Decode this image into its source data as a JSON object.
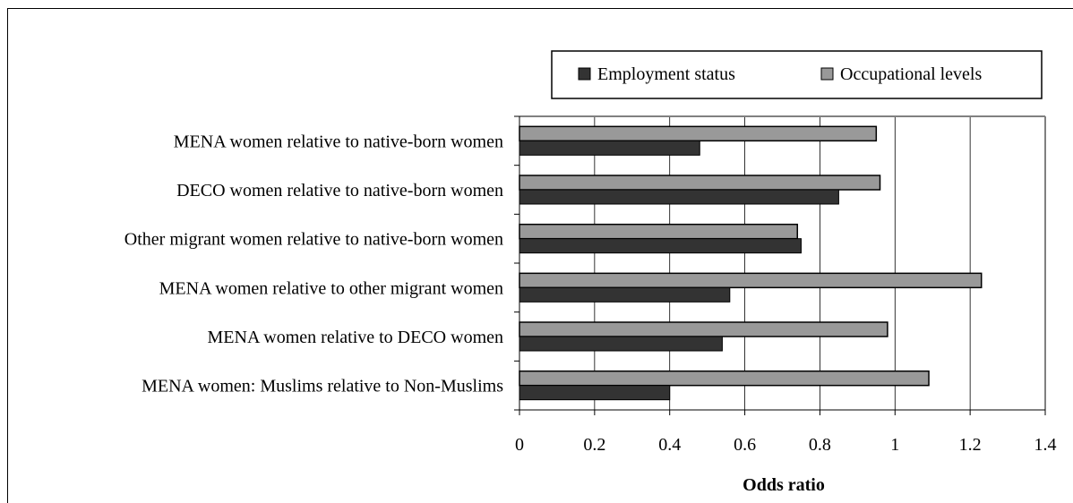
{
  "chart_data": {
    "type": "bar",
    "orientation": "horizontal",
    "categories": [
      "MENA women relative to native-born women",
      "DECO women relative to native-born women",
      "Other migrant women relative to native-born women",
      "MENA women relative to other migrant women",
      "MENA women relative to DECO women",
      "MENA women: Muslims relative to Non-Muslims"
    ],
    "series": [
      {
        "name": "Employment status",
        "color": "#333333",
        "values": [
          0.48,
          0.85,
          0.75,
          0.56,
          0.54,
          0.4
        ]
      },
      {
        "name": "Occupational levels",
        "color": "#999999",
        "values": [
          0.95,
          0.96,
          0.74,
          1.23,
          0.98,
          1.09
        ]
      }
    ],
    "title": "",
    "xlabel": "Odds ratio",
    "ylabel": "",
    "xlim": [
      0,
      1.4
    ],
    "xticks": [
      "0",
      "0.2",
      "0.4",
      "0.6",
      "0.8",
      "1",
      "1.2",
      "1.4"
    ],
    "grid": "vertical",
    "legend_position": "top-right"
  }
}
